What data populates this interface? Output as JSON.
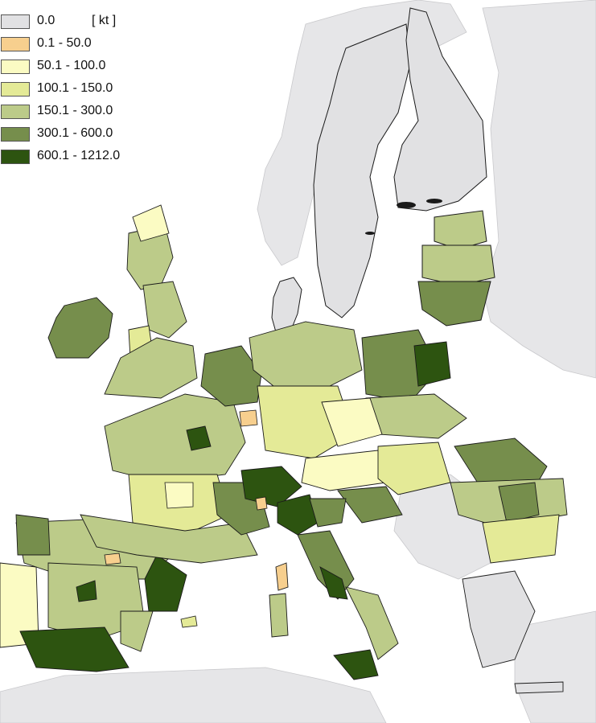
{
  "legend": {
    "unit": "[ kt ]",
    "items": [
      {
        "label": "0.0",
        "color": "#e1e1e3"
      },
      {
        "label": "0.1 - 50.0",
        "color": "#f7cf8e"
      },
      {
        "label": "50.1 - 100.0",
        "color": "#fbfbc3"
      },
      {
        "label": "100.1 - 150.0",
        "color": "#e4ea97"
      },
      {
        "label": "150.1 - 300.0",
        "color": "#bccb89"
      },
      {
        "label": "300.1 - 600.0",
        "color": "#768e4c"
      },
      {
        "label": "600.1 - 1212.0",
        "color": "#2d5410"
      }
    ]
  },
  "colors": {
    "sea": "#ffffff",
    "non_eu_land": "#e5e5e7",
    "border": "#1a1a1a"
  }
}
